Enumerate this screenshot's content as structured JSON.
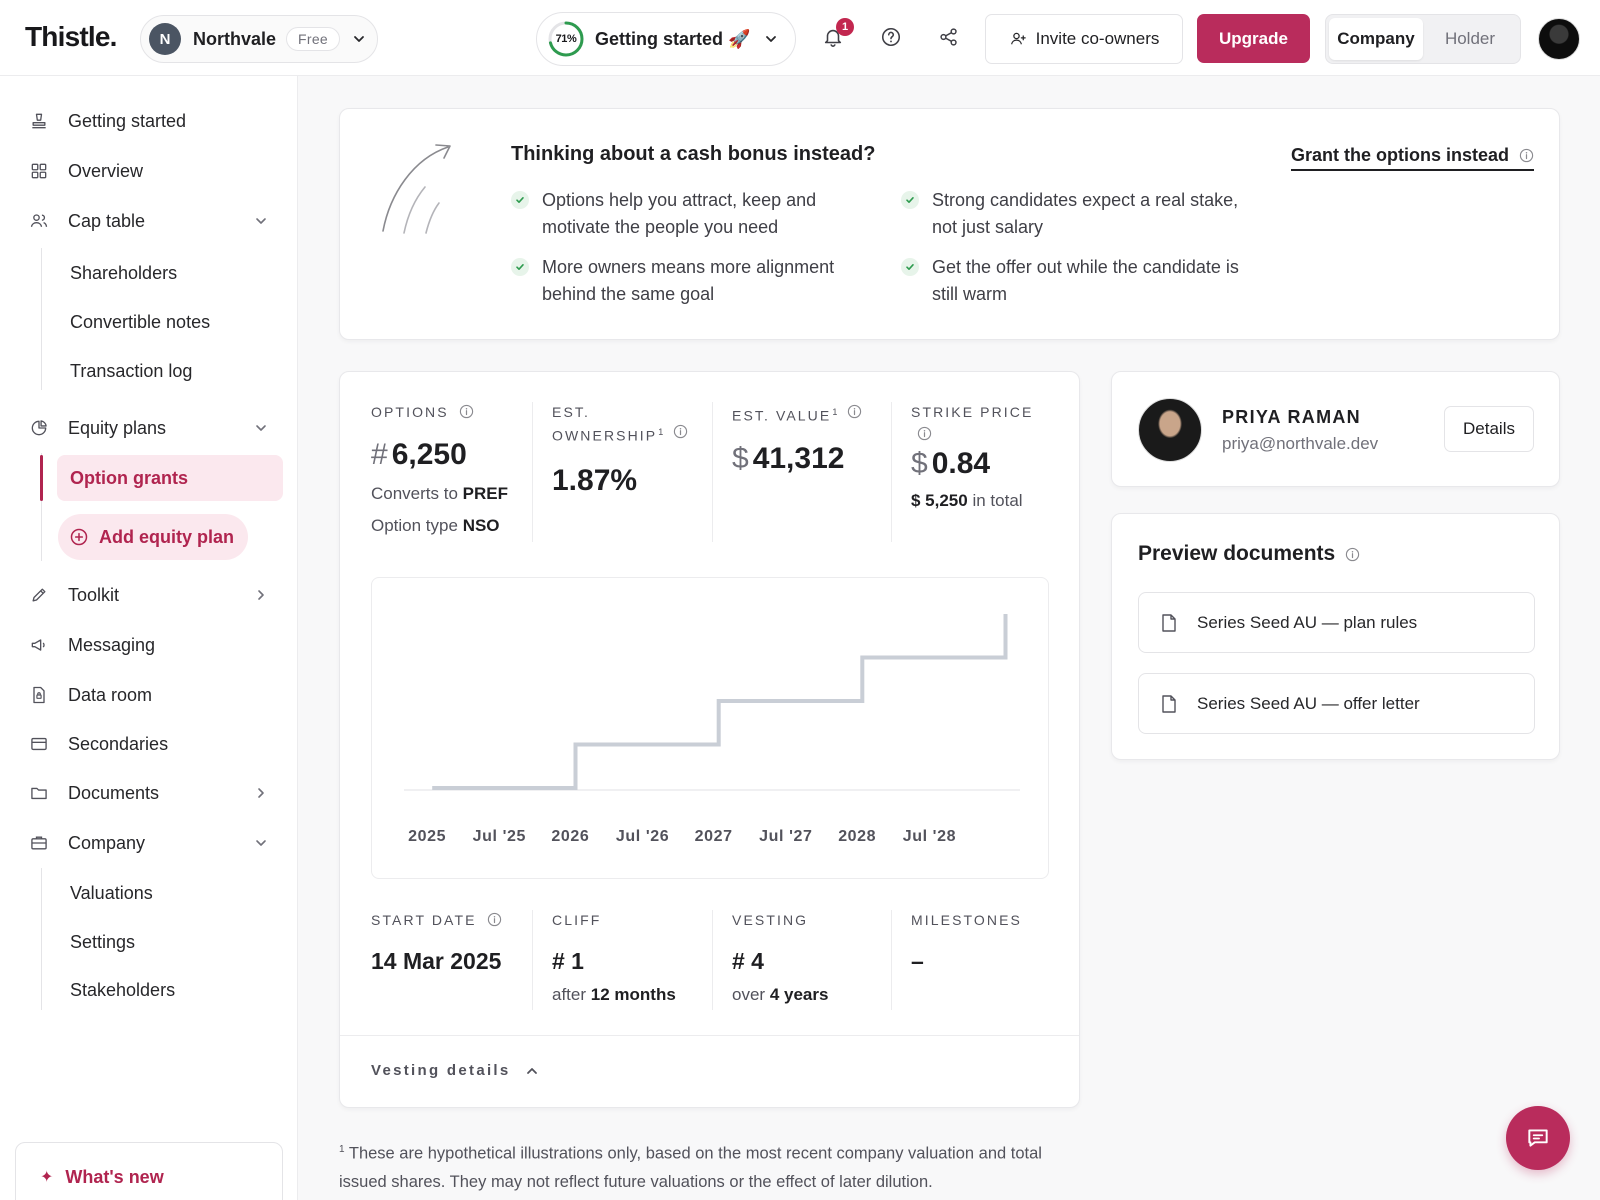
{
  "brand": {
    "logo": "Thistle."
  },
  "org": {
    "initial": "N",
    "name": "Northvale",
    "plan_badge": "Free"
  },
  "getting_started": {
    "percent": 71,
    "percent_label": "71%",
    "label": "Getting started 🚀"
  },
  "notifications": {
    "count": "1"
  },
  "header": {
    "invite_label": "Invite co-owners",
    "upgrade_label": "Upgrade",
    "view_toggle": {
      "company": "Company",
      "holder": "Holder",
      "selected": "Company"
    }
  },
  "sidebar": {
    "items": [
      {
        "label": "Getting started",
        "icon": "stamp-icon"
      },
      {
        "label": "Overview",
        "icon": "grid-icon"
      },
      {
        "label": "Cap table",
        "icon": "users-icon",
        "expanded": true
      },
      {
        "label": "Equity plans",
        "icon": "pie-chart-icon",
        "expanded": true
      },
      {
        "label": "Toolkit",
        "icon": "pencil-icon"
      },
      {
        "label": "Messaging",
        "icon": "megaphone-icon"
      },
      {
        "label": "Data room",
        "icon": "file-lock-icon"
      },
      {
        "label": "Secondaries",
        "icon": "card-icon"
      },
      {
        "label": "Documents",
        "icon": "folder-icon"
      },
      {
        "label": "Company",
        "icon": "briefcase-icon",
        "expanded": true
      }
    ],
    "cap_table_sub": [
      "Shareholders",
      "Convertible notes",
      "Transaction log"
    ],
    "equity_plans_sub": {
      "active": "Option grants",
      "add": "Add equity plan"
    },
    "company_sub": [
      "Valuations",
      "Settings",
      "Stakeholders"
    ],
    "whats_new": "What's new"
  },
  "promo": {
    "title": "Thinking about a cash bonus instead?",
    "link": "Grant the options instead",
    "bullets": [
      "Options help you attract, keep and motivate the people you need",
      "Strong candidates expect a real stake, not just salary",
      "More owners means more alignment behind the same goal",
      "Get the offer out while the candidate is still warm"
    ]
  },
  "grant": {
    "options": {
      "label": "Options",
      "prefix": "#",
      "value": "6,250",
      "converts_prefix": "Converts to",
      "converts_value": "PREF",
      "type_prefix": "Option type",
      "type_value": "NSO"
    },
    "ownership": {
      "label_line1": "Est.",
      "label_line2": "Ownership",
      "footnote_mark": "1",
      "value": "1.87%"
    },
    "est_value": {
      "label": "Est. value",
      "footnote_mark": "1",
      "prefix": "$",
      "value": "41,312"
    },
    "strike": {
      "label": "Strike price",
      "prefix": "$",
      "value": "0.84",
      "total_value": "$ 5,250",
      "total_suffix": "in total"
    },
    "start_date": {
      "label": "Start date",
      "value": "14 Mar 2025"
    },
    "cliff": {
      "label": "Cliff",
      "value": "# 1",
      "sub_prefix": "after",
      "sub_value": "12 months"
    },
    "vesting": {
      "label": "Vesting",
      "value": "# 4",
      "sub_prefix": "over",
      "sub_value": "4 years"
    },
    "milestones": {
      "label": "Milestones",
      "value": "–"
    },
    "vesting_details_label": "Vesting details"
  },
  "chart_data": {
    "type": "line",
    "step": true,
    "x_ticks": [
      "2025",
      "Jul '25",
      "2026",
      "Jul '26",
      "2027",
      "Jul '27",
      "2028",
      "Jul '28"
    ],
    "series": [
      {
        "x": [
          "2025-03-14",
          "2026-03-14",
          "2026-03-14",
          "2027-03-14",
          "2027-03-14",
          "2028-03-14",
          "2028-03-14",
          "2029-03-14",
          "2029-03-14"
        ],
        "y": [
          0,
          0,
          1562.5,
          1562.5,
          3125,
          3125,
          4687.5,
          4687.5,
          6250
        ]
      }
    ],
    "ylim": [
      0,
      6250
    ],
    "grid": false,
    "line_color": "#c9ced6"
  },
  "person": {
    "name": "PRIYA RAMAN",
    "email": "priya@northvale.dev",
    "details_label": "Details"
  },
  "documents": {
    "title": "Preview documents",
    "items": [
      "Series Seed AU — plan rules",
      "Series Seed AU — offer letter"
    ]
  },
  "footnote": {
    "mark": "1",
    "text": "These are hypothetical illustrations only, based on the most recent company valuation and total issued shares. They may not reflect future valuations or the effect of later dilution."
  },
  "colors": {
    "accent": "#b92c5c",
    "accent_soft": "#fbe8ee",
    "success": "#2e9b4f"
  }
}
